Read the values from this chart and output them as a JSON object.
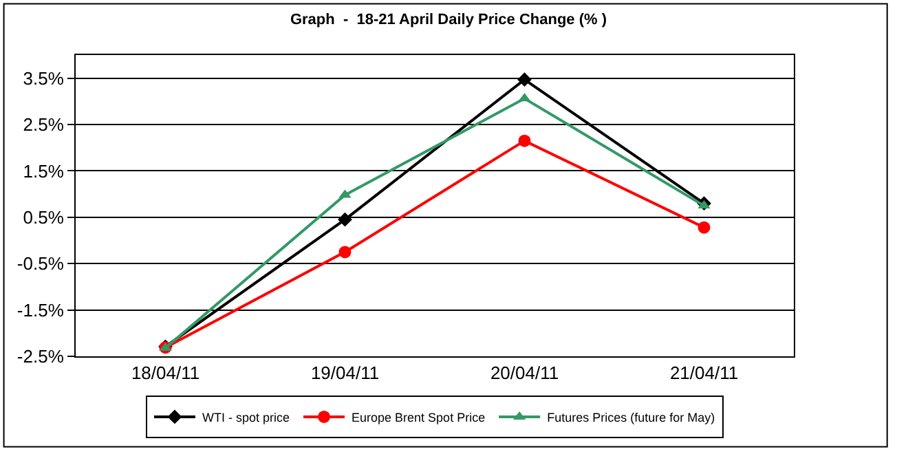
{
  "chart_data": {
    "type": "line",
    "title": "Graph  -  18-21 April Daily Price Change (% )",
    "categories": [
      "18/04/11",
      "19/04/11",
      "20/04/11",
      "21/04/11"
    ],
    "series": [
      {
        "name": "WTI - spot price",
        "color": "#000000",
        "marker": "diamond",
        "values": [
          -2.29,
          0.45,
          3.47,
          0.8
        ]
      },
      {
        "name": "Europe Brent Spot Price",
        "color": "#ff0000",
        "marker": "circle",
        "values": [
          -2.31,
          -0.25,
          2.15,
          0.28
        ]
      },
      {
        "name": "Futures Prices (future for May)",
        "color": "#339966",
        "marker": "triangle",
        "values": [
          -2.32,
          0.98,
          3.06,
          0.75
        ]
      }
    ],
    "ylim": [
      -2.5,
      4.0
    ],
    "yticks": [
      {
        "value": -2.5,
        "label": "-2.5%"
      },
      {
        "value": -1.5,
        "label": "-1.5%"
      },
      {
        "value": -0.5,
        "label": "-0.5%"
      },
      {
        "value": 0.5,
        "label": "0.5%"
      },
      {
        "value": 1.5,
        "label": "1.5%"
      },
      {
        "value": 2.5,
        "label": "2.5%"
      },
      {
        "value": 3.5,
        "label": "3.5%"
      }
    ],
    "grid": "y",
    "legend": "bottom"
  }
}
